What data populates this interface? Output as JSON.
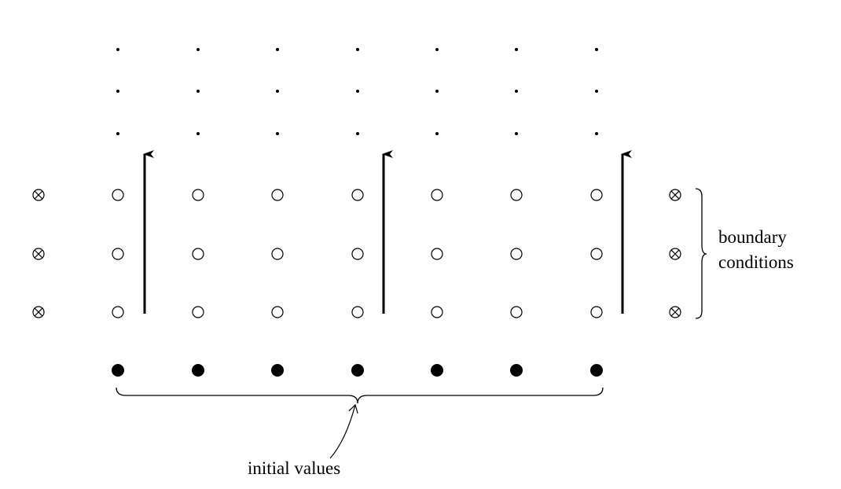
{
  "annotations": {
    "boundary_conditions": [
      "boundary",
      "conditions"
    ],
    "initial_values": "initial values"
  }
}
